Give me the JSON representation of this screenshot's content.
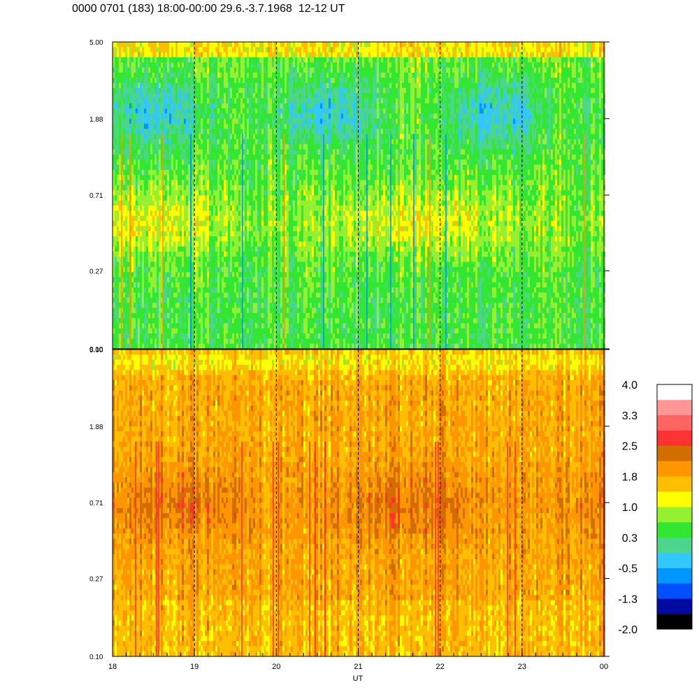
{
  "title": "0000 0701 (183) 18:00-00:00 29.6.-3.7.1968  12-12 UT",
  "chart_data": [
    {
      "type": "heatmap",
      "panel": "upper",
      "x_ticks": [
        "18",
        "19",
        "20",
        "21",
        "22",
        "23",
        "00"
      ],
      "y_ticks": [
        "0.10",
        "0.27",
        "0.71",
        "1.88",
        "5.00"
      ],
      "y_scale": "log",
      "ylim": [
        0.1,
        5.0
      ],
      "xlim": [
        "18",
        "00"
      ],
      "dominant_levels": [
        0.3,
        1.0
      ],
      "dashed_hour_lines": true
    },
    {
      "type": "heatmap",
      "panel": "lower",
      "x_ticks": [
        "18",
        "19",
        "20",
        "21",
        "22",
        "23",
        "00"
      ],
      "y_ticks": [
        "0.10",
        "0.27",
        "0.71",
        "1.88",
        "5.00"
      ],
      "y_scale": "log",
      "ylim": [
        0.1,
        5.0
      ],
      "xlim": [
        "18",
        "00"
      ],
      "xlabel": "UT",
      "dominant_levels": [
        1.0,
        1.8
      ],
      "dashed_hour_lines": true
    }
  ],
  "colorbar": {
    "labels": [
      "4.0",
      "3.3",
      "2.5",
      "1.8",
      "1.0",
      "0.3",
      "-0.5",
      "-1.3",
      "-2.0"
    ],
    "colors": [
      "#000000",
      "#000aa0",
      "#0050ff",
      "#0096ff",
      "#32c8ff",
      "#4bd68c",
      "#32e632",
      "#96f032",
      "#ffff00",
      "#ffbe00",
      "#ff9600",
      "#d26e00",
      "#ff3232",
      "#ff6464",
      "#ff9696",
      "#ffffff"
    ]
  }
}
